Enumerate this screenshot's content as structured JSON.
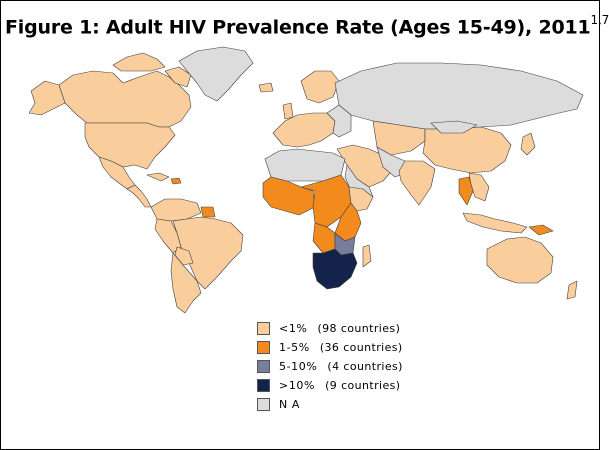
{
  "title": {
    "text": "Figure 1: Adult HIV Prevalence Rate (Ages 15-49), 2011",
    "superscript": "1,7"
  },
  "colors": {
    "lt1": "#f9cd9c",
    "r1to5": "#f28a1e",
    "r5to10": "#787d9c",
    "gt10": "#14234a",
    "na": "#dcdcdc",
    "border": "#404040",
    "ocean": "#ffffff"
  },
  "legend": [
    {
      "key": "lt1",
      "label": "<1%",
      "count": "(98 countries)"
    },
    {
      "key": "r1to5",
      "label": "1-5%",
      "count": "(36 countries)"
    },
    {
      "key": "r5to10",
      "label": "5-10%",
      "count": "(4 countries)"
    },
    {
      "key": "gt10",
      "label": ">10%",
      "count": "(9 countries)"
    },
    {
      "key": "na",
      "label": "N A",
      "count": ""
    }
  ]
}
